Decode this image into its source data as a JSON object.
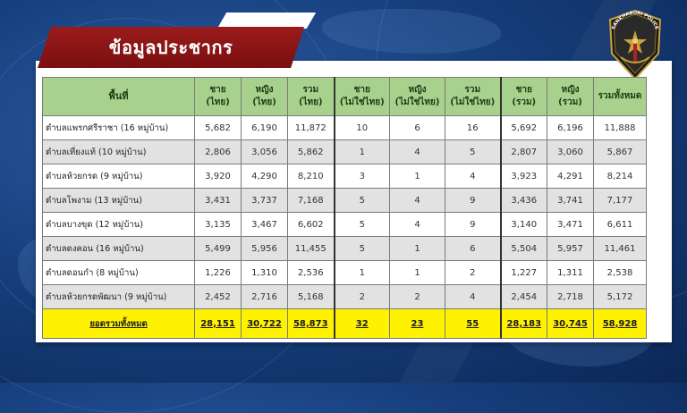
{
  "title": "ข้อมูลประชากร",
  "logo_text": "SANKHABURI POLICE",
  "table": {
    "headers": [
      [
        "พื้นที่",
        ""
      ],
      [
        "ชาย",
        "(ไทย)"
      ],
      [
        "หญิง",
        "(ไทย)"
      ],
      [
        "รวม",
        "(ไทย)"
      ],
      [
        "ชาย",
        "(ไม่ใช่ไทย)"
      ],
      [
        "หญิง",
        "(ไม่ใช่ไทย)"
      ],
      [
        "รวม",
        "(ไม่ใช่ไทย)"
      ],
      [
        "ชาย",
        "(รวม)"
      ],
      [
        "หญิง",
        "(รวม)"
      ],
      [
        "รวมทั้งหมด",
        ""
      ]
    ],
    "rows": [
      [
        "ตำบลแพรกศรีราชา (16 หมู่บ้าน)",
        "5,682",
        "6,190",
        "11,872",
        "10",
        "6",
        "16",
        "5,692",
        "6,196",
        "11,888"
      ],
      [
        "ตำบลเที่ยงแท้ (10 หมู่บ้าน)",
        "2,806",
        "3,056",
        "5,862",
        "1",
        "4",
        "5",
        "2,807",
        "3,060",
        "5,867"
      ],
      [
        "ตำบลห้วยกรด (9 หมู่บ้าน)",
        "3,920",
        "4,290",
        "8,210",
        "3",
        "1",
        "4",
        "3,923",
        "4,291",
        "8,214"
      ],
      [
        "ตำบลโพงาม (13 หมู่บ้าน)",
        "3,431",
        "3,737",
        "7,168",
        "5",
        "4",
        "9",
        "3,436",
        "3,741",
        "7,177"
      ],
      [
        "ตำบลบางขุด (12 หมู่บ้าน)",
        "3,135",
        "3,467",
        "6,602",
        "5",
        "4",
        "9",
        "3,140",
        "3,471",
        "6,611"
      ],
      [
        "ตำบลดงคอน (16 หมู่บ้าน)",
        "5,499",
        "5,956",
        "11,455",
        "5",
        "1",
        "6",
        "5,504",
        "5,957",
        "11,461"
      ],
      [
        "ตำบลดอนกำ (8 หมู่บ้าน)",
        "1,226",
        "1,310",
        "2,536",
        "1",
        "1",
        "2",
        "1,227",
        "1,311",
        "2,538"
      ],
      [
        "ตำบลห้วยกรดพัฒนา (9 หมู่บ้าน)",
        "2,452",
        "2,716",
        "5,168",
        "2",
        "2",
        "4",
        "2,454",
        "2,718",
        "5,172"
      ]
    ],
    "total": [
      "ยอดรวมทั้งหมด",
      "28,151",
      "30,722",
      "58,873",
      "32",
      "23",
      "55",
      "28,183",
      "30,745",
      "58,928"
    ]
  },
  "colors": {
    "header_bg": "#a9d18e",
    "total_bg": "#fff200",
    "title_bar": "#8b1515",
    "background": "#17407e"
  }
}
